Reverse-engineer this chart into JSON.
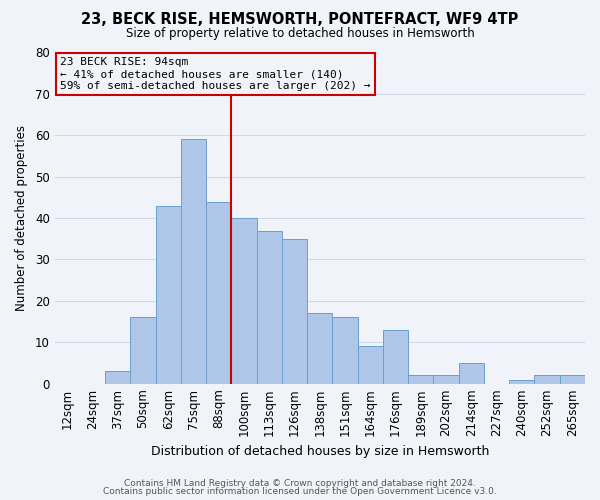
{
  "title": "23, BECK RISE, HEMSWORTH, PONTEFRACT, WF9 4TP",
  "subtitle": "Size of property relative to detached houses in Hemsworth",
  "xlabel": "Distribution of detached houses by size in Hemsworth",
  "ylabel": "Number of detached properties",
  "bin_labels": [
    "12sqm",
    "24sqm",
    "37sqm",
    "50sqm",
    "62sqm",
    "75sqm",
    "88sqm",
    "100sqm",
    "113sqm",
    "126sqm",
    "138sqm",
    "151sqm",
    "164sqm",
    "176sqm",
    "189sqm",
    "202sqm",
    "214sqm",
    "227sqm",
    "240sqm",
    "252sqm",
    "265sqm"
  ],
  "bar_heights": [
    0,
    0,
    3,
    16,
    43,
    59,
    44,
    40,
    37,
    35,
    17,
    16,
    9,
    13,
    2,
    2,
    5,
    0,
    1,
    2,
    2
  ],
  "bar_color": "#aec6e8",
  "bar_edge_color": "#6aa0cc",
  "vline_x": 6.5,
  "vline_color": "#cc0000",
  "annotation_line1": "23 BECK RISE: 94sqm",
  "annotation_line2": "← 41% of detached houses are smaller (140)",
  "annotation_line3": "59% of semi-detached houses are larger (202) →",
  "annotation_box_edgecolor": "#cc0000",
  "ylim": [
    0,
    80
  ],
  "yticks": [
    0,
    10,
    20,
    30,
    40,
    50,
    60,
    70,
    80
  ],
  "grid_color": "#d0d8e8",
  "background_color": "#f0f4fa",
  "footer1": "Contains HM Land Registry data © Crown copyright and database right 2024.",
  "footer2": "Contains public sector information licensed under the Open Government Licence v3.0."
}
